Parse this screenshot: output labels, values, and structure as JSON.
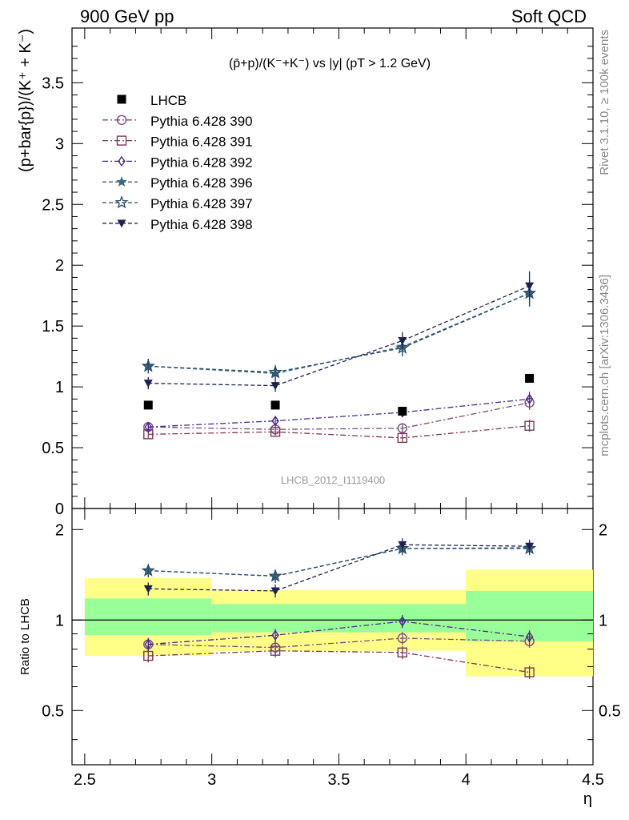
{
  "header": {
    "left": "900 GeV pp",
    "right": "Soft QCD"
  },
  "side_labels": {
    "rivet": "Rivet 3.1.10, ≥ 100k events",
    "mcplots": "mcplots.cern.ch [arXiv:1306.3436]"
  },
  "chart_data": [
    {
      "type": "scatter",
      "title": "(p̄+p)/(K⁻+K⁻) vs |y| (pT > 1.2 GeV)",
      "analysis_label": "LHCB_2012_I1119400",
      "ylabel": "(p+bar{p})/(K⁺ + K⁻)",
      "xlim": [
        2.45,
        4.5
      ],
      "ylim": [
        0,
        3.95
      ],
      "x_ticks": [
        2.5,
        3,
        3.5,
        4,
        4.5
      ],
      "y_ticks": [
        0.5,
        1,
        1.5,
        2,
        2.5,
        3,
        3.5
      ],
      "y_tick_labels": [
        "0.5",
        "1",
        "1.5",
        "2",
        "2.5",
        "3",
        "3.5"
      ],
      "legend_placement": "top-left",
      "data": {
        "name": "LHCB",
        "color": "#000000",
        "marker": "square",
        "x": [
          2.75,
          3.25,
          3.75,
          4.25
        ],
        "y": [
          0.85,
          0.85,
          0.8,
          1.07
        ]
      },
      "series": [
        {
          "name": "Pythia 6.428 390",
          "color": "#7a4a78",
          "marker": "circle",
          "dash": "dashdot",
          "x": [
            2.75,
            3.25,
            3.75,
            4.25
          ],
          "y": [
            0.67,
            0.65,
            0.66,
            0.87
          ],
          "err": [
            0.03,
            0.03,
            0.03,
            0.06
          ]
        },
        {
          "name": "Pythia 6.428 391",
          "color": "#7a3a58",
          "marker": "square-open",
          "dash": "dashdot",
          "x": [
            2.75,
            3.25,
            3.75,
            4.25
          ],
          "y": [
            0.61,
            0.63,
            0.58,
            0.68
          ],
          "err": [
            0.03,
            0.03,
            0.03,
            0.05
          ]
        },
        {
          "name": "Pythia 6.428 392",
          "color": "#4a2a88",
          "marker": "diamond-open",
          "dash": "dashdot",
          "x": [
            2.75,
            3.25,
            3.75,
            4.25
          ],
          "y": [
            0.67,
            0.72,
            0.79,
            0.9
          ],
          "err": [
            0.03,
            0.03,
            0.03,
            0.06
          ]
        },
        {
          "name": "Pythia 6.428 396",
          "color": "#3a6a7a",
          "marker": "star",
          "dash": "dashed",
          "x": [
            2.75,
            3.25,
            3.75,
            4.25
          ],
          "y": [
            1.17,
            1.11,
            1.33,
            1.77
          ],
          "err": [
            0.06,
            0.06,
            0.07,
            0.11
          ]
        },
        {
          "name": "Pythia 6.428 397",
          "color": "#2a4a6a",
          "marker": "star-open",
          "dash": "dashed",
          "x": [
            2.75,
            3.25,
            3.75,
            4.25
          ],
          "y": [
            1.17,
            1.12,
            1.32,
            1.77
          ],
          "err": [
            0.06,
            0.06,
            0.07,
            0.11
          ]
        },
        {
          "name": "Pythia 6.428 398",
          "color": "#1e2250",
          "marker": "triangle-down",
          "dash": "dashed",
          "x": [
            2.75,
            3.25,
            3.75,
            4.25
          ],
          "y": [
            1.03,
            1.01,
            1.38,
            1.83
          ],
          "err": [
            0.05,
            0.05,
            0.07,
            0.12
          ]
        }
      ]
    },
    {
      "type": "scatter",
      "ylabel": "Ratio to LHCB",
      "xlabel": "η",
      "xlim": [
        2.45,
        4.5
      ],
      "ylim": [
        0.33,
        2.35
      ],
      "x_ticks": [
        2.5,
        3,
        3.5,
        4,
        4.5
      ],
      "x_tick_labels": [
        "2.5",
        "3",
        "3.5",
        "4",
        "4.5"
      ],
      "y_ticks": [
        0.5,
        1,
        2
      ],
      "y_tick_labels": [
        "0.5",
        "1",
        "2"
      ],
      "bands": [
        {
          "x0": 2.5,
          "x1": 3.0,
          "yellow": [
            0.76,
            1.38
          ],
          "green": [
            0.89,
            1.18
          ]
        },
        {
          "x0": 3.0,
          "x1": 4.0,
          "yellow": [
            0.79,
            1.26
          ],
          "green": [
            0.91,
            1.13
          ]
        },
        {
          "x0": 4.0,
          "x1": 4.5,
          "yellow": [
            0.65,
            1.47
          ],
          "green": [
            0.85,
            1.25
          ]
        }
      ],
      "series": [
        {
          "name": "Pythia 6.428 390",
          "x": [
            2.75,
            3.25,
            3.75,
            4.25
          ],
          "y": [
            0.83,
            0.81,
            0.87,
            0.85
          ]
        },
        {
          "name": "Pythia 6.428 391",
          "x": [
            2.75,
            3.25,
            3.75,
            4.25
          ],
          "y": [
            0.76,
            0.79,
            0.78,
            0.67
          ]
        },
        {
          "name": "Pythia 6.428 392",
          "x": [
            2.75,
            3.25,
            3.75,
            4.25
          ],
          "y": [
            0.83,
            0.89,
            0.99,
            0.88
          ]
        },
        {
          "name": "Pythia 6.428 396",
          "x": [
            2.75,
            3.25,
            3.75,
            4.25
          ],
          "y": [
            1.46,
            1.4,
            1.73,
            1.74
          ]
        },
        {
          "name": "Pythia 6.428 397",
          "x": [
            2.75,
            3.25,
            3.75,
            4.25
          ],
          "y": [
            1.46,
            1.4,
            1.73,
            1.73
          ]
        },
        {
          "name": "Pythia 6.428 398",
          "x": [
            2.75,
            3.25,
            3.75,
            4.25
          ],
          "y": [
            1.27,
            1.25,
            1.78,
            1.76
          ]
        }
      ]
    }
  ]
}
